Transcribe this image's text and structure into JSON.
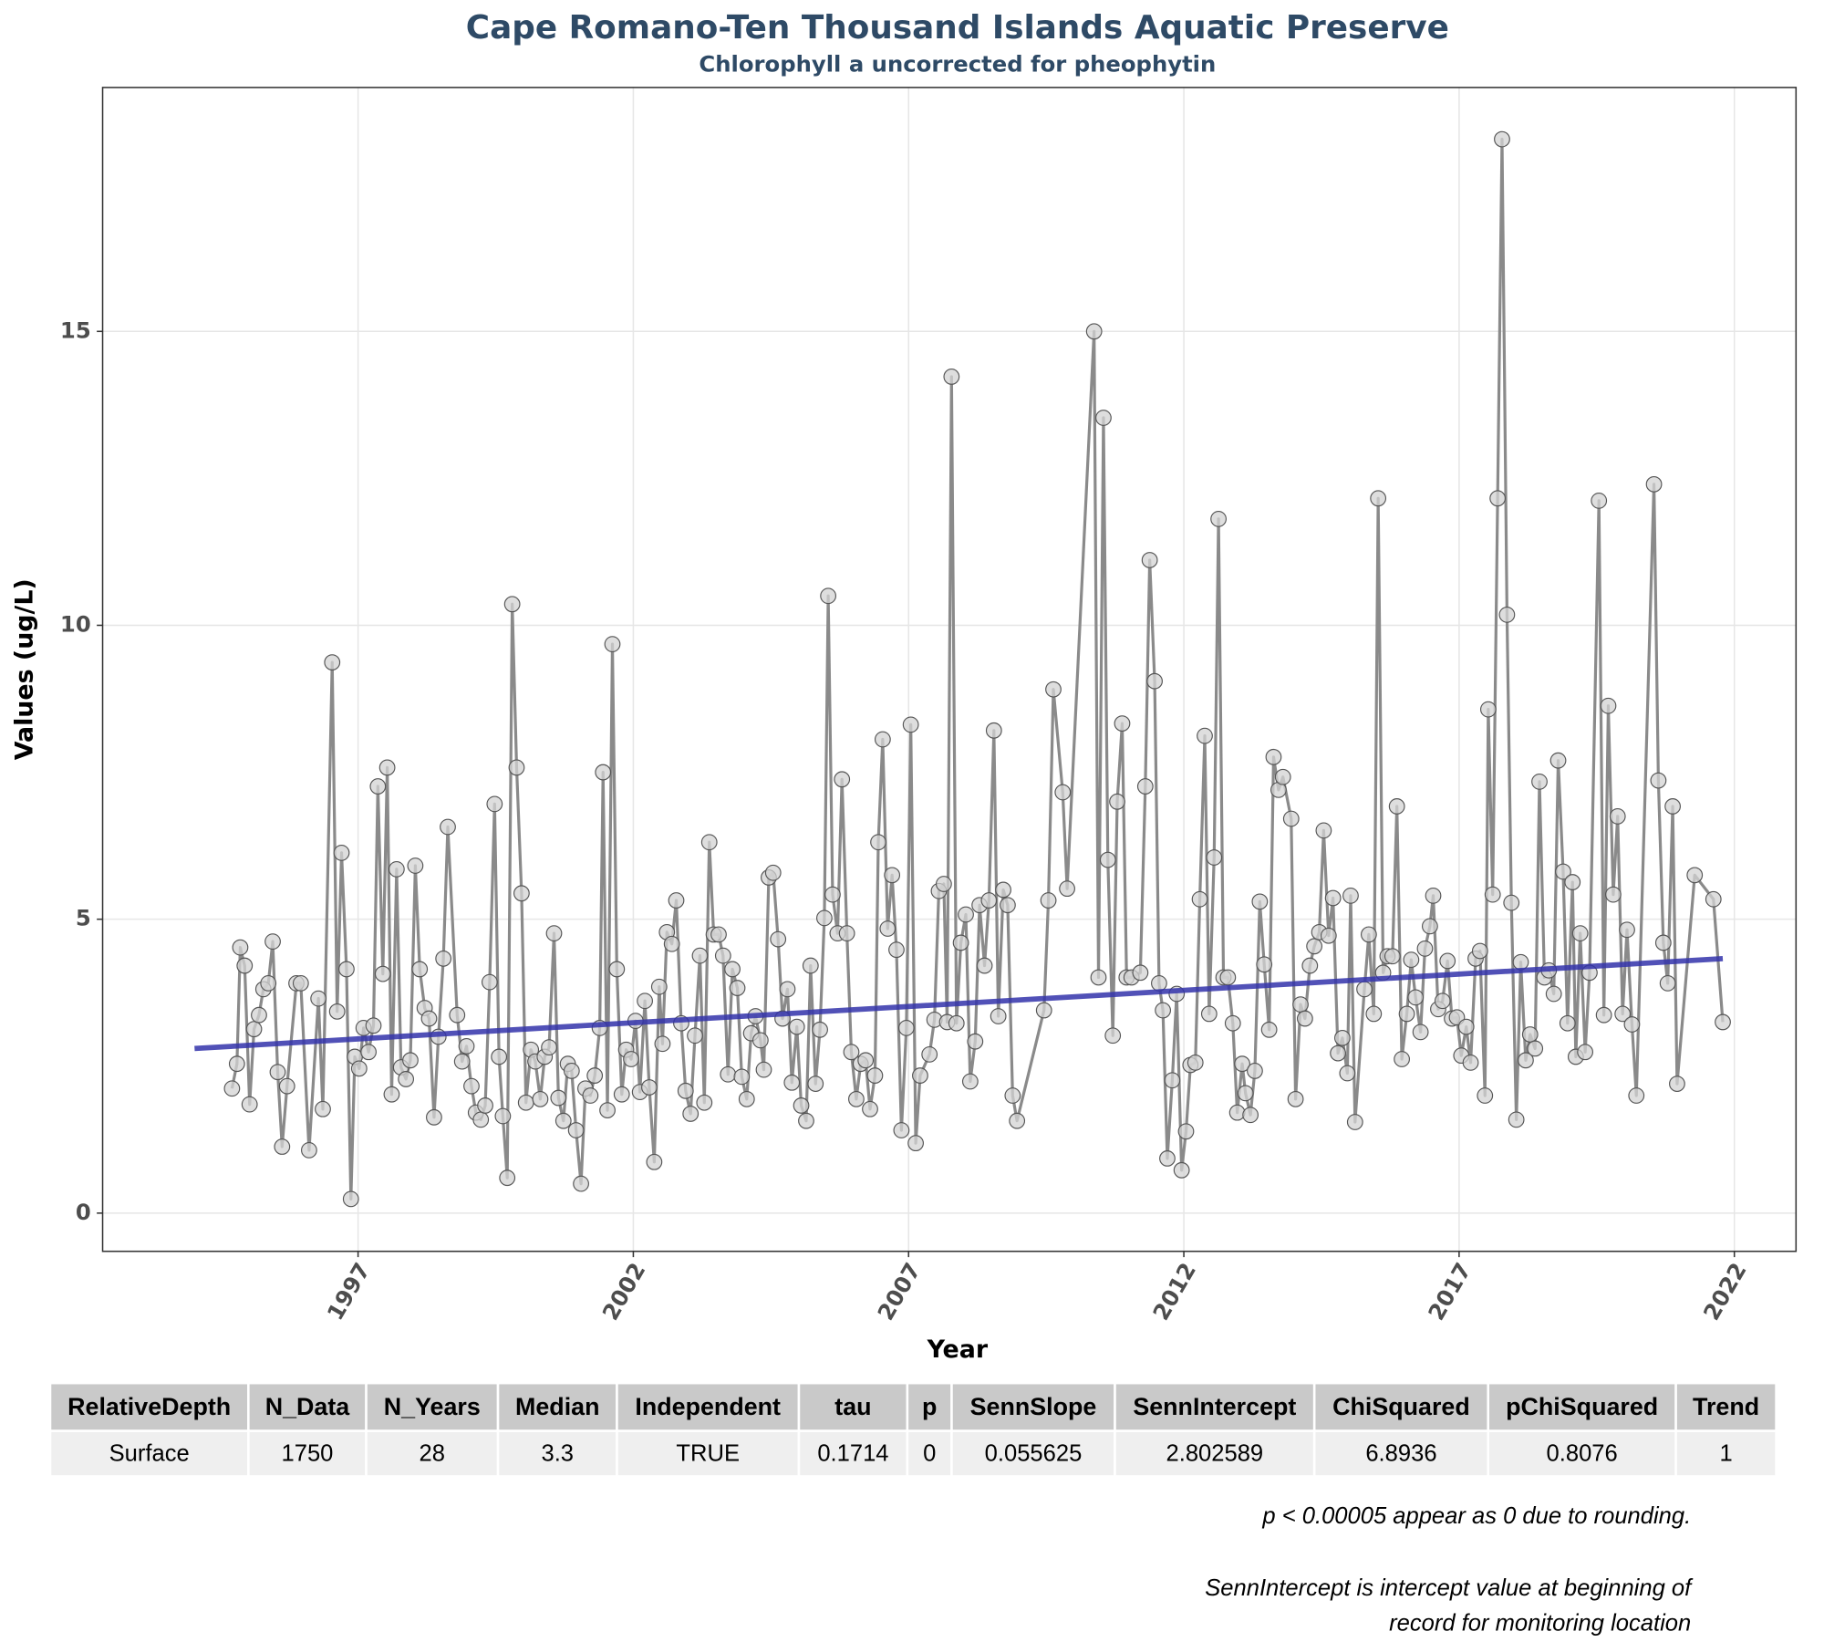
{
  "chart_data": {
    "type": "line",
    "title": "Cape Romano-Ten Thousand Islands Aquatic Preserve",
    "subtitle": "Chlorophyll a uncorrected for pheophytin",
    "x_label": "Year",
    "y_label": "Values (ug/L)",
    "xlim": [
      1992.36,
      2023.12
    ],
    "ylim": [
      -0.65,
      19.15
    ],
    "xticks": [
      1997,
      2002,
      2007,
      2012,
      2017,
      2022
    ],
    "yticks": [
      0,
      5,
      10,
      15
    ],
    "grid": true,
    "color": "#8a8a8a",
    "marker_color": "#d3d3d3",
    "x": [
      1994.71,
      1994.8,
      1994.86,
      1994.94,
      1995.03,
      1995.11,
      1995.2,
      1995.28,
      1995.37,
      1995.45,
      1995.54,
      1995.62,
      1995.71,
      1995.88,
      1995.96,
      1996.11,
      1996.28,
      1996.36,
      1996.53,
      1996.62,
      1996.7,
      1996.79,
      1996.87,
      1996.94,
      1997.02,
      1997.1,
      1997.19,
      1997.28,
      1997.36,
      1997.45,
      1997.53,
      1997.61,
      1997.7,
      1997.78,
      1997.87,
      1997.95,
      1998.04,
      1998.12,
      1998.21,
      1998.29,
      1998.38,
      1998.46,
      1998.55,
      1998.63,
      1998.8,
      1998.89,
      1998.97,
      1999.06,
      1999.14,
      1999.23,
      1999.31,
      1999.39,
      1999.48,
      1999.56,
      1999.63,
      1999.71,
      1999.8,
      1999.88,
      1999.97,
      2000.05,
      2000.14,
      2000.22,
      2000.31,
      2000.39,
      2000.47,
      2000.56,
      2000.64,
      2000.73,
      2000.81,
      2000.88,
      2000.96,
      2001.05,
      2001.13,
      2001.22,
      2001.3,
      2001.39,
      2001.45,
      2001.53,
      2001.62,
      2001.7,
      2001.79,
      2001.87,
      2001.96,
      2002.04,
      2002.12,
      2002.21,
      2002.29,
      2002.38,
      2002.47,
      2002.53,
      2002.61,
      2002.7,
      2002.78,
      2002.87,
      2002.95,
      2003.04,
      2003.12,
      2003.21,
      2003.29,
      2003.38,
      2003.46,
      2003.55,
      2003.63,
      2003.72,
      2003.8,
      2003.89,
      2003.97,
      2004.06,
      2004.14,
      2004.22,
      2004.31,
      2004.37,
      2004.46,
      2004.54,
      2004.63,
      2004.71,
      2004.8,
      2004.88,
      2004.97,
      2005.05,
      2005.14,
      2005.22,
      2005.31,
      2005.39,
      2005.47,
      2005.54,
      2005.62,
      2005.71,
      2005.79,
      2005.88,
      2005.96,
      2006.05,
      2006.13,
      2006.22,
      2006.3,
      2006.39,
      2006.45,
      2006.53,
      2006.62,
      2006.7,
      2006.78,
      2006.87,
      2006.96,
      2007.04,
      2007.13,
      2007.21,
      2007.38,
      2007.47,
      2007.55,
      2007.64,
      2007.7,
      2007.78,
      2007.87,
      2007.95,
      2008.04,
      2008.12,
      2008.21,
      2008.29,
      2008.38,
      2008.46,
      2008.55,
      2008.63,
      2008.72,
      2008.8,
      2008.89,
      2008.97,
      2009.46,
      2009.54,
      2009.63,
      2009.8,
      2009.88,
      2010.37,
      2010.45,
      2010.54,
      2010.62,
      2010.71,
      2010.79,
      2010.88,
      2010.96,
      2011.05,
      2011.21,
      2011.3,
      2011.38,
      2011.47,
      2011.55,
      2011.62,
      2011.7,
      2011.79,
      2011.87,
      2011.96,
      2012.04,
      2012.12,
      2012.21,
      2012.29,
      2012.38,
      2012.46,
      2012.55,
      2012.63,
      2012.72,
      2012.8,
      2012.89,
      2012.97,
      2013.06,
      2013.12,
      2013.21,
      2013.29,
      2013.38,
      2013.46,
      2013.55,
      2013.63,
      2013.72,
      2013.8,
      2013.95,
      2014.03,
      2014.12,
      2014.2,
      2014.29,
      2014.37,
      2014.46,
      2014.54,
      2014.63,
      2014.71,
      2014.8,
      2014.88,
      2014.97,
      2015.03,
      2015.11,
      2015.28,
      2015.36,
      2015.45,
      2015.53,
      2015.62,
      2015.7,
      2015.79,
      2015.87,
      2015.96,
      2016.05,
      2016.13,
      2016.21,
      2016.3,
      2016.38,
      2016.47,
      2016.53,
      2016.62,
      2016.7,
      2016.79,
      2016.87,
      2016.96,
      2017.04,
      2017.13,
      2017.21,
      2017.3,
      2017.38,
      2017.47,
      2017.53,
      2017.61,
      2017.7,
      2017.78,
      2017.87,
      2017.95,
      2018.04,
      2018.12,
      2018.21,
      2018.29,
      2018.38,
      2018.46,
      2018.55,
      2018.63,
      2018.72,
      2018.8,
      2018.89,
      2018.97,
      2019.06,
      2019.12,
      2019.2,
      2019.29,
      2019.37,
      2019.54,
      2019.63,
      2019.71,
      2019.8,
      2019.88,
      2019.97,
      2020.05,
      2020.14,
      2020.22,
      2020.54,
      2020.62,
      2020.71,
      2020.79,
      2020.88,
      2020.96,
      2021.28,
      2021.62,
      2021.79
    ],
    "values": [
      2.12,
      2.54,
      4.52,
      4.21,
      1.85,
      3.13,
      3.37,
      3.81,
      3.91,
      4.62,
      2.4,
      1.13,
      2.16,
      3.91,
      3.91,
      1.07,
      3.65,
      1.77,
      9.37,
      3.43,
      6.13,
      4.15,
      0.24,
      2.66,
      2.46,
      3.15,
      2.74,
      3.19,
      7.26,
      4.07,
      7.58,
      2.02,
      5.85,
      2.48,
      2.28,
      2.6,
      5.91,
      4.15,
      3.49,
      3.31,
      1.63,
      3.0,
      4.33,
      6.57,
      3.37,
      2.58,
      2.84,
      2.16,
      1.71,
      1.59,
      1.83,
      3.93,
      6.96,
      2.66,
      1.65,
      0.6,
      10.36,
      7.58,
      5.44,
      1.88,
      2.78,
      2.58,
      1.94,
      2.66,
      2.82,
      4.76,
      1.96,
      1.57,
      2.54,
      2.42,
      1.41,
      0.5,
      2.12,
      2.0,
      2.34,
      3.15,
      7.5,
      1.75,
      9.68,
      4.15,
      2.02,
      2.78,
      2.62,
      3.27,
      2.06,
      3.61,
      2.14,
      0.87,
      3.85,
      2.88,
      4.78,
      4.58,
      5.32,
      3.23,
      2.08,
      1.69,
      3.02,
      4.38,
      1.88,
      6.31,
      4.74,
      4.74,
      4.38,
      2.36,
      4.15,
      3.83,
      2.32,
      1.94,
      3.06,
      3.35,
      2.94,
      2.44,
      5.71,
      5.79,
      4.66,
      3.31,
      3.81,
      2.22,
      3.17,
      1.83,
      1.57,
      4.21,
      2.2,
      3.12,
      5.02,
      10.5,
      5.42,
      4.76,
      7.38,
      4.76,
      2.74,
      1.94,
      2.54,
      2.6,
      1.77,
      2.34,
      6.31,
      8.06,
      4.84,
      5.75,
      4.48,
      1.41,
      3.15,
      8.31,
      1.19,
      2.34,
      2.7,
      3.29,
      5.48,
      5.6,
      3.25,
      14.23,
      3.23,
      4.6,
      5.08,
      2.24,
      2.92,
      5.24,
      4.21,
      5.32,
      8.21,
      3.35,
      5.5,
      5.24,
      2.0,
      1.57,
      3.45,
      5.32,
      8.91,
      7.16,
      5.52,
      15.0,
      4.01,
      13.53,
      6.01,
      3.02,
      7.0,
      8.33,
      4.01,
      4.01,
      4.09,
      7.26,
      11.11,
      9.05,
      3.91,
      3.45,
      0.93,
      2.26,
      3.73,
      0.73,
      1.39,
      2.52,
      2.56,
      5.34,
      8.12,
      3.39,
      6.05,
      11.81,
      4.01,
      4.01,
      3.23,
      1.71,
      2.54,
      2.04,
      1.67,
      2.42,
      5.3,
      4.23,
      3.12,
      7.76,
      7.2,
      7.42,
      6.71,
      1.94,
      3.55,
      3.31,
      4.21,
      4.54,
      4.78,
      6.51,
      4.72,
      5.36,
      2.72,
      2.98,
      2.38,
      5.4,
      1.55,
      3.81,
      4.74,
      3.39,
      12.16,
      4.09,
      4.37,
      4.37,
      6.92,
      2.62,
      3.39,
      4.31,
      3.67,
      3.08,
      4.5,
      4.88,
      5.4,
      3.47,
      3.61,
      4.29,
      3.31,
      3.33,
      2.68,
      3.17,
      2.56,
      4.33,
      4.46,
      2.0,
      8.57,
      5.42,
      12.16,
      18.27,
      10.18,
      5.28,
      1.59,
      4.27,
      2.6,
      3.04,
      2.8,
      7.34,
      4.01,
      4.13,
      3.73,
      7.7,
      5.81,
      3.23,
      5.63,
      2.66,
      4.76,
      2.74,
      4.09,
      12.12,
      3.37,
      8.63,
      5.42,
      6.75,
      3.39,
      4.82,
      3.21,
      2.0,
      12.4,
      7.36,
      4.6,
      3.91,
      6.92,
      2.2,
      5.75,
      5.34,
      3.25
    ],
    "trend_line": {
      "color": "#3333aa",
      "x": [
        1994.03,
        2021.79
      ],
      "values": [
        2.8,
        4.33
      ]
    }
  },
  "table": {
    "header": [
      "RelativeDepth",
      "N_Data",
      "N_Years",
      "Median",
      "Independent",
      "tau",
      "p",
      "SennSlope",
      "SennIntercept",
      "ChiSquared",
      "pChiSquared",
      "Trend"
    ],
    "rows": [
      [
        "Surface",
        "1750",
        "28",
        "3.3",
        "TRUE",
        "0.1714",
        "0",
        "0.055625",
        "2.802589",
        "6.8936",
        "0.8076",
        "1"
      ]
    ]
  },
  "notes": [
    "p < 0.00005 appear as 0 due to rounding.",
    "SennIntercept is intercept value at beginning of",
    "record for monitoring location"
  ]
}
